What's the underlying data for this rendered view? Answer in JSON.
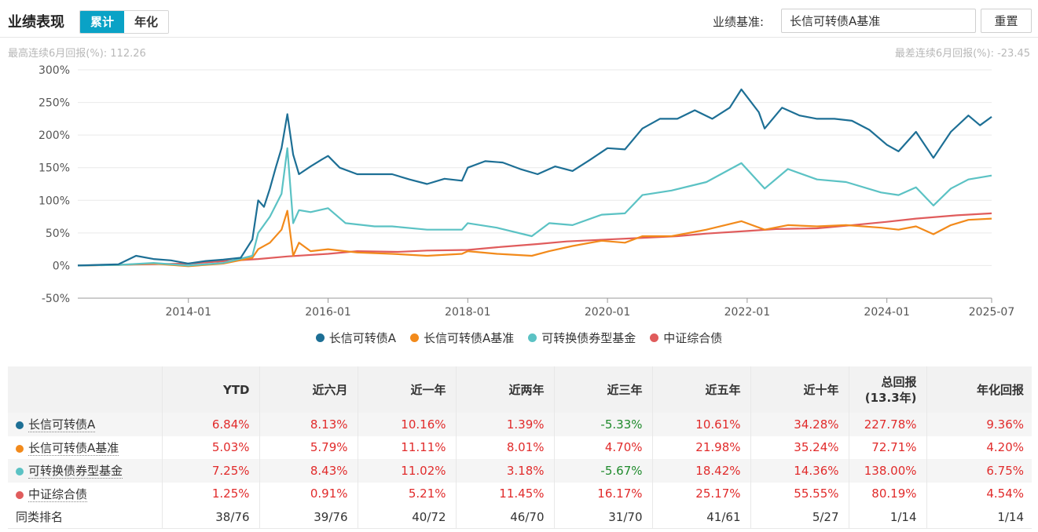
{
  "header": {
    "title": "业绩表现",
    "tabs": [
      {
        "label": "累计",
        "active": true
      },
      {
        "label": "年化",
        "active": false
      }
    ],
    "benchmark_label": "业绩基准:",
    "benchmark_value": "长信可转债A基准",
    "reset_label": "重置"
  },
  "stats": {
    "best": "最高连续6月回报(%):  112.26",
    "worst": "最差连续6月回报(%):  -23.45"
  },
  "chart_data": {
    "type": "line",
    "xlabel": "",
    "ylabel": "",
    "x_range": [
      "2012-06",
      "2025-07"
    ],
    "x_ticks": [
      "2014-01",
      "2016-01",
      "2018-01",
      "2020-01",
      "2022-01",
      "2024-01",
      "2025-07"
    ],
    "y_ticks": [
      "300%",
      "250%",
      "200%",
      "150%",
      "100%",
      "50%",
      "0%",
      "-50%"
    ],
    "ylim": [
      -50,
      300
    ],
    "grid": "horizontal",
    "legend_position": "bottom",
    "series": [
      {
        "name": "长信可转债A",
        "color": "#1d6f95",
        "points": [
          [
            "2012-06",
            0
          ],
          [
            "2013-01",
            2
          ],
          [
            "2013-04",
            15
          ],
          [
            "2013-07",
            10
          ],
          [
            "2013-10",
            8
          ],
          [
            "2014-01",
            3
          ],
          [
            "2014-04",
            7
          ],
          [
            "2014-07",
            9
          ],
          [
            "2014-10",
            12
          ],
          [
            "2014-12",
            40
          ],
          [
            "2015-01",
            100
          ],
          [
            "2015-02",
            90
          ],
          [
            "2015-03",
            118
          ],
          [
            "2015-04",
            150
          ],
          [
            "2015-05",
            180
          ],
          [
            "2015-06",
            232
          ],
          [
            "2015-07",
            170
          ],
          [
            "2015-08",
            140
          ],
          [
            "2015-10",
            152
          ],
          [
            "2015-12",
            163
          ],
          [
            "2016-01",
            168
          ],
          [
            "2016-03",
            150
          ],
          [
            "2016-06",
            140
          ],
          [
            "2016-09",
            140
          ],
          [
            "2016-12",
            140
          ],
          [
            "2017-03",
            132
          ],
          [
            "2017-06",
            125
          ],
          [
            "2017-09",
            133
          ],
          [
            "2017-12",
            130
          ],
          [
            "2018-01",
            150
          ],
          [
            "2018-04",
            160
          ],
          [
            "2018-07",
            158
          ],
          [
            "2018-10",
            148
          ],
          [
            "2019-01",
            140
          ],
          [
            "2019-04",
            152
          ],
          [
            "2019-07",
            145
          ],
          [
            "2019-10",
            162
          ],
          [
            "2020-01",
            180
          ],
          [
            "2020-04",
            178
          ],
          [
            "2020-07",
            210
          ],
          [
            "2020-10",
            225
          ],
          [
            "2021-01",
            225
          ],
          [
            "2021-04",
            238
          ],
          [
            "2021-07",
            225
          ],
          [
            "2021-10",
            242
          ],
          [
            "2021-12",
            270
          ],
          [
            "2022-03",
            235
          ],
          [
            "2022-04",
            210
          ],
          [
            "2022-07",
            242
          ],
          [
            "2022-10",
            230
          ],
          [
            "2023-01",
            225
          ],
          [
            "2023-04",
            225
          ],
          [
            "2023-07",
            222
          ],
          [
            "2023-10",
            208
          ],
          [
            "2024-01",
            185
          ],
          [
            "2024-03",
            175
          ],
          [
            "2024-06",
            205
          ],
          [
            "2024-09",
            165
          ],
          [
            "2024-12",
            205
          ],
          [
            "2025-03",
            230
          ],
          [
            "2025-05",
            215
          ],
          [
            "2025-07",
            228
          ]
        ]
      },
      {
        "name": "长信可转债A基准",
        "color": "#f28a1b",
        "points": [
          [
            "2012-06",
            0
          ],
          [
            "2013-01",
            1
          ],
          [
            "2013-07",
            3
          ],
          [
            "2014-01",
            -1
          ],
          [
            "2014-07",
            3
          ],
          [
            "2014-12",
            12
          ],
          [
            "2015-01",
            25
          ],
          [
            "2015-03",
            35
          ],
          [
            "2015-05",
            55
          ],
          [
            "2015-06",
            84
          ],
          [
            "2015-07",
            15
          ],
          [
            "2015-08",
            35
          ],
          [
            "2015-10",
            22
          ],
          [
            "2016-01",
            25
          ],
          [
            "2016-06",
            20
          ],
          [
            "2016-12",
            18
          ],
          [
            "2017-06",
            15
          ],
          [
            "2017-12",
            18
          ],
          [
            "2018-01",
            22
          ],
          [
            "2018-06",
            18
          ],
          [
            "2018-12",
            15
          ],
          [
            "2019-03",
            22
          ],
          [
            "2019-07",
            30
          ],
          [
            "2019-12",
            38
          ],
          [
            "2020-04",
            35
          ],
          [
            "2020-07",
            45
          ],
          [
            "2020-12",
            45
          ],
          [
            "2021-06",
            55
          ],
          [
            "2021-12",
            68
          ],
          [
            "2022-04",
            55
          ],
          [
            "2022-08",
            62
          ],
          [
            "2023-01",
            60
          ],
          [
            "2023-06",
            62
          ],
          [
            "2023-12",
            58
          ],
          [
            "2024-03",
            55
          ],
          [
            "2024-06",
            60
          ],
          [
            "2024-09",
            48
          ],
          [
            "2024-12",
            62
          ],
          [
            "2025-03",
            70
          ],
          [
            "2025-07",
            72
          ]
        ]
      },
      {
        "name": "可转换债券型基金",
        "color": "#5bc2c4",
        "points": [
          [
            "2012-06",
            0
          ],
          [
            "2013-01",
            1
          ],
          [
            "2013-07",
            4
          ],
          [
            "2014-01",
            0
          ],
          [
            "2014-07",
            4
          ],
          [
            "2014-12",
            15
          ],
          [
            "2015-01",
            50
          ],
          [
            "2015-03",
            75
          ],
          [
            "2015-05",
            110
          ],
          [
            "2015-06",
            180
          ],
          [
            "2015-07",
            65
          ],
          [
            "2015-08",
            85
          ],
          [
            "2015-10",
            82
          ],
          [
            "2016-01",
            88
          ],
          [
            "2016-04",
            65
          ],
          [
            "2016-09",
            60
          ],
          [
            "2016-12",
            60
          ],
          [
            "2017-06",
            55
          ],
          [
            "2017-12",
            55
          ],
          [
            "2018-01",
            65
          ],
          [
            "2018-06",
            58
          ],
          [
            "2018-12",
            45
          ],
          [
            "2019-03",
            65
          ],
          [
            "2019-07",
            62
          ],
          [
            "2019-12",
            78
          ],
          [
            "2020-04",
            80
          ],
          [
            "2020-07",
            108
          ],
          [
            "2020-12",
            115
          ],
          [
            "2021-06",
            128
          ],
          [
            "2021-12",
            157
          ],
          [
            "2022-04",
            118
          ],
          [
            "2022-08",
            148
          ],
          [
            "2023-01",
            132
          ],
          [
            "2023-06",
            128
          ],
          [
            "2023-12",
            112
          ],
          [
            "2024-03",
            108
          ],
          [
            "2024-06",
            120
          ],
          [
            "2024-09",
            92
          ],
          [
            "2024-12",
            118
          ],
          [
            "2025-03",
            132
          ],
          [
            "2025-07",
            138
          ]
        ]
      },
      {
        "name": "中证综合债",
        "color": "#e05c5c",
        "points": [
          [
            "2012-06",
            0
          ],
          [
            "2013-06",
            2
          ],
          [
            "2014-01",
            3
          ],
          [
            "2014-06",
            6
          ],
          [
            "2015-01",
            10
          ],
          [
            "2015-06",
            14
          ],
          [
            "2016-01",
            18
          ],
          [
            "2016-06",
            22
          ],
          [
            "2017-01",
            21
          ],
          [
            "2017-06",
            23
          ],
          [
            "2018-01",
            24
          ],
          [
            "2018-06",
            28
          ],
          [
            "2019-01",
            33
          ],
          [
            "2019-06",
            37
          ],
          [
            "2020-01",
            40
          ],
          [
            "2020-06",
            42
          ],
          [
            "2021-01",
            45
          ],
          [
            "2021-06",
            49
          ],
          [
            "2022-01",
            53
          ],
          [
            "2022-06",
            56
          ],
          [
            "2023-01",
            57
          ],
          [
            "2023-06",
            61
          ],
          [
            "2024-01",
            67
          ],
          [
            "2024-06",
            72
          ],
          [
            "2025-01",
            77
          ],
          [
            "2025-07",
            80
          ]
        ]
      }
    ]
  },
  "table": {
    "headers": [
      "",
      "YTD",
      "近六月",
      "近一年",
      "近两年",
      "近三年",
      "近五年",
      "近十年",
      "总回报\n(13.3年)",
      "年化回报"
    ],
    "rows": [
      {
        "name": "长信可转债A",
        "color": "#1d6f95",
        "values": [
          "6.84%",
          "8.13%",
          "10.16%",
          "1.39%",
          "-5.33%",
          "10.61%",
          "34.28%",
          "227.78%",
          "9.36%"
        ]
      },
      {
        "name": "长信可转债A基准",
        "color": "#f28a1b",
        "values": [
          "5.03%",
          "5.79%",
          "11.11%",
          "8.01%",
          "4.70%",
          "21.98%",
          "35.24%",
          "72.71%",
          "4.20%"
        ]
      },
      {
        "name": "可转换债券型基金",
        "color": "#5bc2c4",
        "values": [
          "7.25%",
          "8.43%",
          "11.02%",
          "3.18%",
          "-5.67%",
          "18.42%",
          "14.36%",
          "138.00%",
          "6.75%"
        ]
      },
      {
        "name": "中证综合债",
        "color": "#e05c5c",
        "values": [
          "1.25%",
          "0.91%",
          "5.21%",
          "11.45%",
          "16.17%",
          "25.17%",
          "55.55%",
          "80.19%",
          "4.54%"
        ]
      }
    ],
    "rank_row": {
      "label": "同类排名",
      "values": [
        "38/76",
        "39/76",
        "40/72",
        "46/70",
        "31/70",
        "41/61",
        "5/27",
        "1/14",
        "1/14"
      ]
    }
  }
}
